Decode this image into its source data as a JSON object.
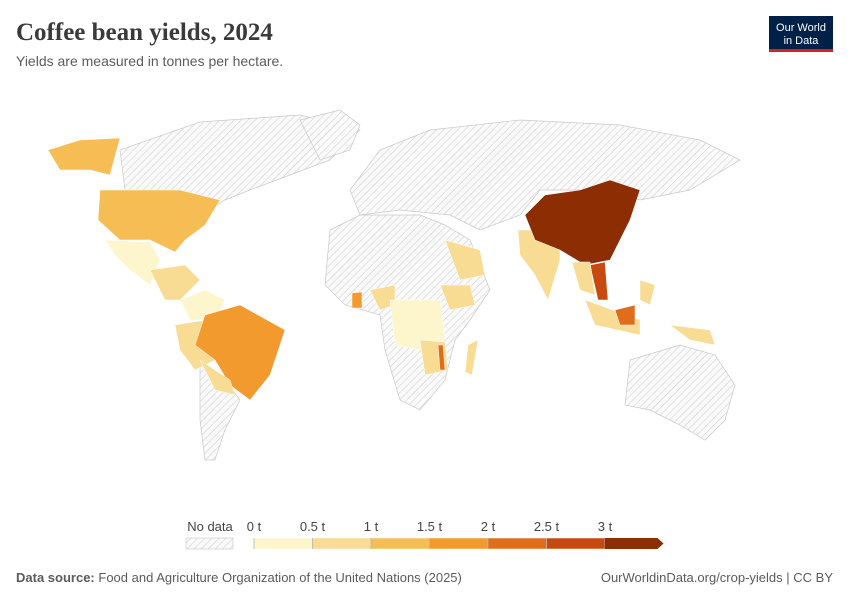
{
  "header": {
    "title": "Coffee bean yields, 2024",
    "subtitle": "Yields are measured in tonnes per hectare.",
    "logo": [
      "Our World",
      "in Data"
    ]
  },
  "legend": {
    "no_data": "No data",
    "ticks": [
      {
        "value": 0,
        "label": "0 t"
      },
      {
        "value": 0.5,
        "label": "0.5 t"
      },
      {
        "value": 1,
        "label": "1 t"
      },
      {
        "value": 1.5,
        "label": "1.5 t"
      },
      {
        "value": 2,
        "label": "2 t"
      },
      {
        "value": 2.5,
        "label": "2.5 t"
      },
      {
        "value": 3,
        "label": "3 t"
      }
    ],
    "colors": [
      "#fdf6cc",
      "#f9dc93",
      "#f7bd55",
      "#f39a2e",
      "#e16d1b",
      "#c64a0f",
      "#8c2d04"
    ]
  },
  "footer": {
    "source_label": "Data source:",
    "source": "Food and Agriculture Organization of the United Nations (2025)",
    "link": "OurWorldinData.org/crop-yields | CC BY"
  }
}
